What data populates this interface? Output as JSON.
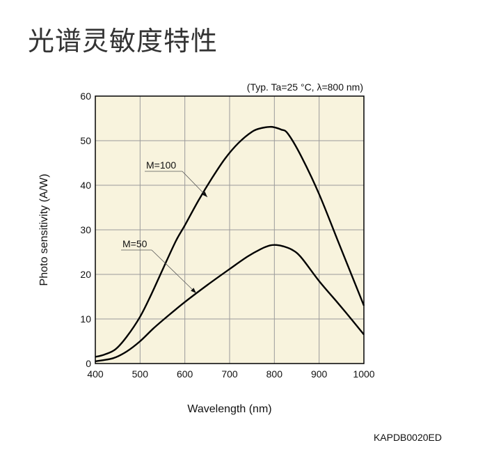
{
  "page": {
    "title": "光谱灵敏度特性",
    "doc_code": "KAPDB0020ED"
  },
  "colors": {
    "plot_background": "#f8f3dd",
    "grid": "#9a9a9a",
    "curve": "#000000"
  },
  "chart_data": {
    "type": "line",
    "annotation": "(Typ. Ta=25 °C, λ=800 nm)",
    "xlabel": "Wavelength (nm)",
    "ylabel": "Photo sensitivity (A/W)",
    "xlim": [
      400,
      1000
    ],
    "ylim": [
      0,
      60
    ],
    "xticks": [
      "400",
      "500",
      "600",
      "700",
      "800",
      "900",
      "1000"
    ],
    "yticks": [
      "0",
      "10",
      "20",
      "30",
      "40",
      "50",
      "60"
    ],
    "grid": true,
    "series": [
      {
        "name": "M=100",
        "x": [
          400,
          420,
          445,
          470,
          500,
          525,
          550,
          580,
          600,
          630,
          660,
          690,
          720,
          750,
          770,
          790,
          800,
          815,
          830,
          860,
          900,
          940,
          970,
          1000
        ],
        "y": [
          1.5,
          2.0,
          3.2,
          6.0,
          10.5,
          15.5,
          21.0,
          27.5,
          31.0,
          36.5,
          41.5,
          46.0,
          49.5,
          52.0,
          52.8,
          53.1,
          53.0,
          52.5,
          51.6,
          46.5,
          38.0,
          28.0,
          20.5,
          13.0
        ]
      },
      {
        "name": "M=50",
        "x": [
          400,
          440,
          470,
          500,
          530,
          560,
          600,
          650,
          700,
          740,
          770,
          790,
          805,
          820,
          840,
          860,
          900,
          940,
          970,
          1000
        ],
        "y": [
          0.5,
          1.2,
          2.7,
          5.0,
          7.9,
          10.5,
          13.8,
          17.6,
          21.2,
          24.0,
          25.7,
          26.5,
          26.6,
          26.3,
          25.5,
          23.8,
          18.5,
          13.8,
          10.2,
          6.5
        ]
      }
    ],
    "labels": [
      "M=100",
      "M=50"
    ]
  }
}
